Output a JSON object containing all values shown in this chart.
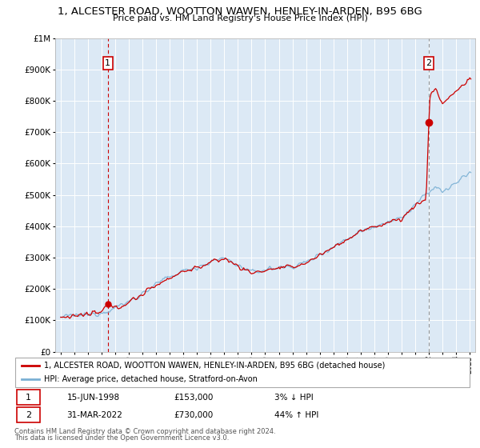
{
  "title": "1, ALCESTER ROAD, WOOTTON WAWEN, HENLEY-IN-ARDEN, B95 6BG",
  "subtitle": "Price paid vs. HM Land Registry's House Price Index (HPI)",
  "sale1_date": "15-JUN-1998",
  "sale1_price": 153000,
  "sale1_label": "3% ↓ HPI",
  "sale2_date": "31-MAR-2022",
  "sale2_price": 730000,
  "sale2_label": "44% ↑ HPI",
  "sale1_x": 1998.46,
  "sale2_x": 2022.0,
  "legend_line1": "1, ALCESTER ROAD, WOOTTON WAWEN, HENLEY-IN-ARDEN, B95 6BG (detached house)",
  "legend_line2": "HPI: Average price, detached house, Stratford-on-Avon",
  "footnote1": "Contains HM Land Registry data © Crown copyright and database right 2024.",
  "footnote2": "This data is licensed under the Open Government Licence v3.0.",
  "line_color_red": "#cc0000",
  "line_color_blue": "#7ab0d4",
  "plot_bg": "#dce9f5",
  "ylim_min": 0,
  "ylim_max": 1000000,
  "xlabel_start": 1995,
  "xlabel_end": 2025
}
